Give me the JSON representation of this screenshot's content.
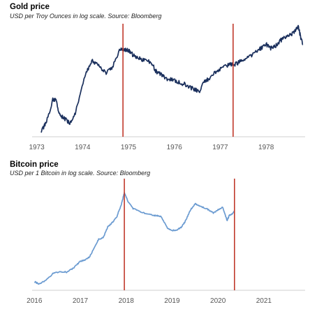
{
  "chart_data": [
    {
      "type": "line",
      "title": "Gold price",
      "subtitle": "USD per Troy Ounces in log scale. Source: Bloomberg",
      "xlabel": "",
      "ylabel": "",
      "y_scale": "log",
      "y_axis_labels_shown": false,
      "x_ticks": [
        "1973",
        "1974",
        "1975",
        "1976",
        "1977",
        "1978"
      ],
      "xlim": [
        1972.9,
        1978.85
      ],
      "ylim": [
        60,
        230
      ],
      "color": "#1a2f5c",
      "vlines": {
        "x": [
          1974.88,
          1977.28
        ],
        "color": "#c0392b"
      },
      "series": [
        {
          "x": [
            1973.1,
            1973.2,
            1973.35,
            1973.42,
            1973.5,
            1973.6,
            1973.75,
            1973.85,
            1974.05,
            1974.2,
            1974.35,
            1974.5,
            1974.65,
            1974.82,
            1974.92,
            1975.0,
            1975.1,
            1975.2,
            1975.35,
            1975.5,
            1975.6,
            1975.7,
            1975.8,
            1975.95,
            1976.1,
            1976.25,
            1976.4,
            1976.55,
            1976.65,
            1976.75,
            1976.9,
            1977.05,
            1977.2,
            1977.3,
            1977.4,
            1977.55,
            1977.7,
            1977.85,
            1978.0,
            1978.1,
            1978.2,
            1978.3,
            1978.4,
            1978.5,
            1978.6,
            1978.7,
            1978.75,
            1978.8
          ],
          "y": [
            64,
            70,
            92,
            92,
            78,
            74,
            70,
            80,
            122,
            145,
            138,
            125,
            135,
            165,
            165,
            163,
            155,
            150,
            145,
            143,
            128,
            125,
            118,
            116,
            113,
            110,
            105,
            102,
            113,
            118,
            128,
            133,
            140,
            138,
            142,
            148,
            155,
            165,
            175,
            168,
            172,
            182,
            190,
            195,
            200,
            215,
            192,
            175
          ]
        }
      ]
    },
    {
      "type": "line",
      "title": "Bitcoin price",
      "subtitle": "USD per 1 Bitcoin in log scale. Source: Bloomberg",
      "xlabel": "",
      "ylabel": "",
      "y_scale": "log",
      "y_axis_labels_shown": false,
      "x_ticks": [
        "2016",
        "2017",
        "2018",
        "2019",
        "2020",
        "2021"
      ],
      "xlim": [
        2015.95,
        2021.9
      ],
      "ylim": [
        300,
        22000
      ],
      "color": "#6b9bd1",
      "vlines": {
        "x": [
          2017.96,
          2020.36
        ],
        "color": "#c0392b"
      },
      "series": [
        {
          "x": [
            2016.0,
            2016.1,
            2016.25,
            2016.4,
            2016.55,
            2016.7,
            2016.85,
            2017.0,
            2017.1,
            2017.2,
            2017.3,
            2017.4,
            2017.5,
            2017.6,
            2017.7,
            2017.8,
            2017.9,
            2017.96,
            2018.05,
            2018.15,
            2018.3,
            2018.45,
            2018.6,
            2018.75,
            2018.9,
            2019.0,
            2019.1,
            2019.2,
            2019.3,
            2019.4,
            2019.5,
            2019.6,
            2019.75,
            2019.9,
            2020.0,
            2020.1,
            2020.2,
            2020.25,
            2020.3,
            2020.36
          ],
          "y": [
            430,
            390,
            450,
            600,
            650,
            640,
            750,
            1000,
            1050,
            1200,
            1700,
            2500,
            2700,
            4200,
            5000,
            6500,
            11000,
            17500,
            11500,
            9000,
            8000,
            7200,
            6800,
            6500,
            4000,
            3600,
            3700,
            4100,
            5500,
            8500,
            11000,
            10000,
            9000,
            7500,
            8500,
            9500,
            5500,
            6800,
            7000,
            8000
          ]
        }
      ]
    }
  ]
}
